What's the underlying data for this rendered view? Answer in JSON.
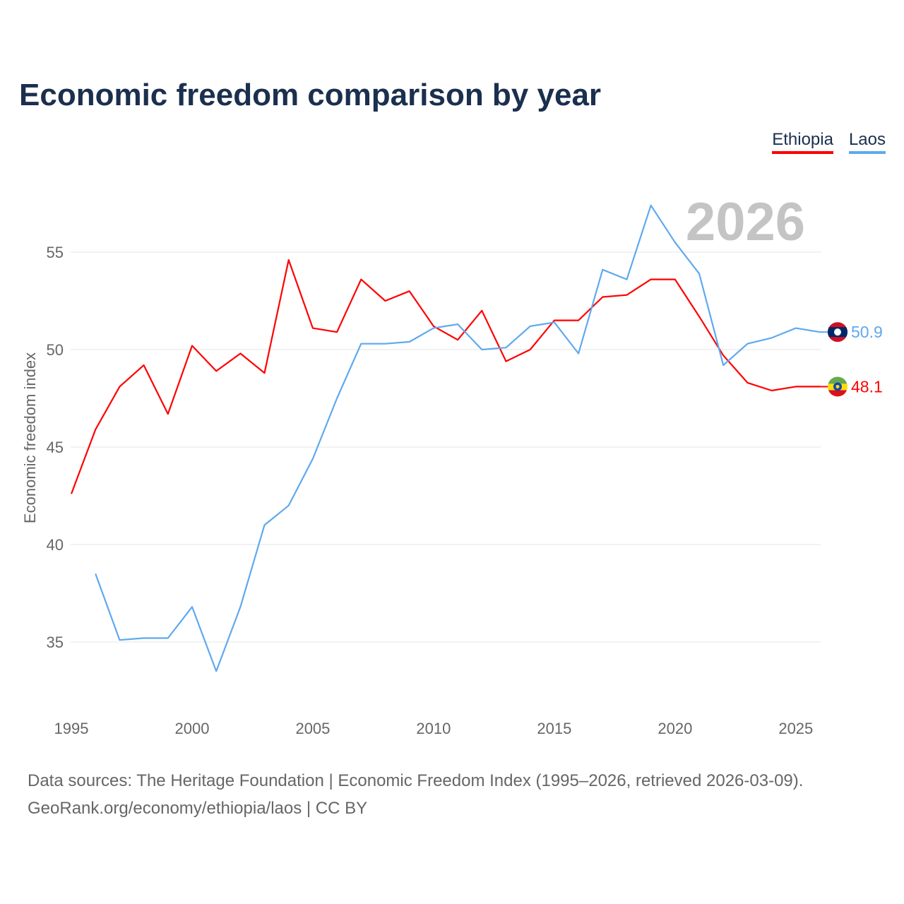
{
  "title": "Economic freedom comparison by year",
  "footer": {
    "line1": "Data sources: The Heritage Foundation | Economic Freedom Index (1995–2026, retrieved 2026-03-09).",
    "line2": "GeoRank.org/economy/ethiopia/laos | CC BY"
  },
  "chart_data": {
    "type": "line",
    "title": "Economic freedom comparison by year",
    "watermark_year": "2026",
    "xlabel": "",
    "ylabel": "Economic freedom index",
    "xlim": [
      1995,
      2026
    ],
    "ylim": [
      32,
      59
    ],
    "x_ticks": [
      "1995",
      "2000",
      "2005",
      "2010",
      "2015",
      "2020",
      "2025"
    ],
    "y_ticks": [
      "35",
      "40",
      "45",
      "50",
      "55"
    ],
    "grid": true,
    "legend_position": "top-right",
    "x": [
      1995,
      1996,
      1997,
      1998,
      1999,
      2000,
      2001,
      2002,
      2003,
      2004,
      2005,
      2006,
      2007,
      2008,
      2009,
      2010,
      2011,
      2012,
      2013,
      2014,
      2015,
      2016,
      2017,
      2018,
      2019,
      2020,
      2021,
      2022,
      2023,
      2024,
      2025,
      2026
    ],
    "series": [
      {
        "name": "Ethiopia",
        "color": "#ff0000",
        "end_label": "48.1",
        "flag": "ethiopia-flag",
        "values": [
          42.6,
          45.9,
          48.1,
          49.2,
          46.7,
          50.2,
          48.9,
          49.8,
          48.8,
          54.6,
          51.1,
          50.9,
          53.6,
          52.5,
          53.0,
          51.2,
          50.5,
          52.0,
          49.4,
          50.0,
          51.5,
          51.5,
          52.7,
          52.8,
          53.6,
          53.6,
          51.7,
          49.7,
          48.3,
          47.9,
          48.1,
          48.1
        ]
      },
      {
        "name": "Laos",
        "color": "#5ea9ef",
        "end_label": "50.9",
        "flag": "laos-flag",
        "values": [
          null,
          38.5,
          35.1,
          35.2,
          35.2,
          36.8,
          33.5,
          36.8,
          41.0,
          42.0,
          44.4,
          47.5,
          50.3,
          50.3,
          50.4,
          51.1,
          51.3,
          50.0,
          50.1,
          51.2,
          51.4,
          49.8,
          54.1,
          53.6,
          57.4,
          55.5,
          53.9,
          49.2,
          50.3,
          50.6,
          51.1,
          50.9
        ]
      }
    ]
  }
}
